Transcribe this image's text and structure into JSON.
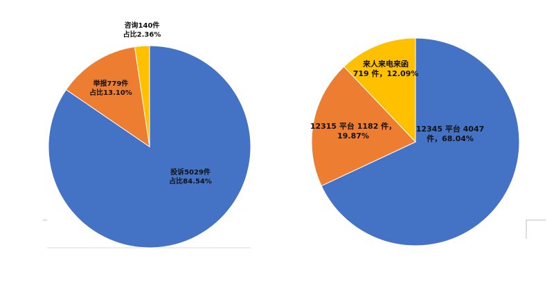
{
  "chart_data": [
    {
      "type": "pie",
      "categories": [
        "投诉",
        "举报",
        "咨询"
      ],
      "values": [
        5029,
        779,
        140
      ],
      "value_labels": [
        [
          "投诉5029件",
          "占比84.54%"
        ],
        [
          "举报779件",
          "占比13.10%"
        ],
        [
          "咨询140件",
          "占比2.36%"
        ]
      ],
      "colors": [
        "#4472c4",
        "#ed7d31",
        "#ffc000"
      ]
    },
    {
      "type": "pie",
      "categories": [
        "12345 平台",
        "12315 平台",
        "来人来电来函"
      ],
      "values": [
        4047,
        1182,
        719
      ],
      "value_labels": [
        [
          "12345 平台 4047",
          "件，68.04%"
        ],
        [
          "12315 平台 1182 件，",
          "19.87%"
        ],
        [
          "来人来电来函",
          "719 件，12.09%"
        ]
      ],
      "colors": [
        "#4472c4",
        "#ed7d31",
        "#ffc000"
      ]
    }
  ]
}
